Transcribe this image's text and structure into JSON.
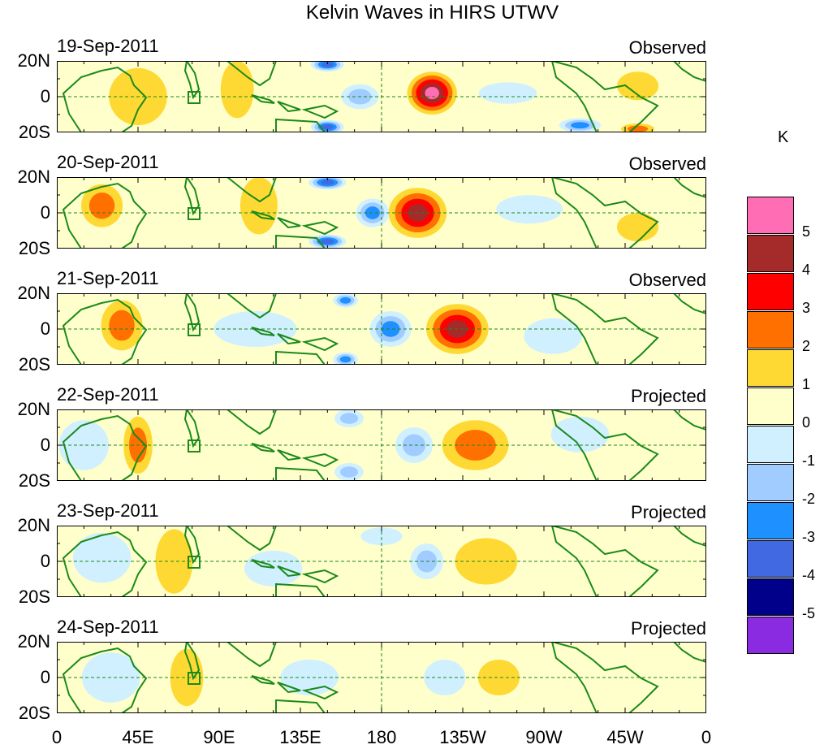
{
  "title": "Kelvin Waves in HIRS UTWV",
  "chart_data": {
    "type": "heatmap",
    "title": "Kelvin Waves in HIRS UTWV",
    "x_ticks": [
      "0",
      "45E",
      "90E",
      "135E",
      "180",
      "135W",
      "90W",
      "45W",
      "0"
    ],
    "y_ticks": [
      "20N",
      "0",
      "20S"
    ],
    "lon_range": [
      0,
      360
    ],
    "lat_range": [
      -20,
      20
    ],
    "colorbar": {
      "unit": "K",
      "labels": [
        "5",
        "4",
        "3",
        "2",
        "1",
        "0",
        "-1",
        "-2",
        "-3",
        "-4",
        "-5"
      ],
      "colors_top_to_bottom": [
        "#ff6eb4",
        "#a52a2a",
        "#ff0000",
        "#ff7000",
        "#ffd933",
        "#ffffcc",
        "#d0f0ff",
        "#a0ccff",
        "#1e90ff",
        "#4169e1",
        "#00008b",
        "#8a2be2"
      ]
    },
    "panels": [
      {
        "date": "19-Sep-2011",
        "status": "Observed",
        "features": [
          {
            "lon": 208,
            "lat": 2,
            "value": 5.2,
            "wlon": 12,
            "wlat": 12
          },
          {
            "lon": 150,
            "lat": 18,
            "value": -4.2,
            "wlon": 8,
            "wlat": 4
          },
          {
            "lon": 150,
            "lat": -17,
            "value": -4.2,
            "wlon": 8,
            "wlat": 4
          },
          {
            "lon": 168,
            "lat": 0,
            "value": -2.5,
            "wlon": 9,
            "wlat": 7
          },
          {
            "lon": 45,
            "lat": 0,
            "value": 1.6,
            "wlon": 14,
            "wlat": 16
          },
          {
            "lon": 100,
            "lat": 4,
            "value": 1.6,
            "wlon": 8,
            "wlat": 16
          },
          {
            "lon": 290,
            "lat": -16,
            "value": -3.2,
            "wlon": 10,
            "wlat": 4
          },
          {
            "lon": 322,
            "lat": -18,
            "value": 2.2,
            "wlon": 8,
            "wlat": 3
          },
          {
            "lon": 322,
            "lat": 6,
            "value": 1.2,
            "wlon": 10,
            "wlat": 8
          },
          {
            "lon": 250,
            "lat": 2,
            "value": -1.5,
            "wlon": 14,
            "wlat": 6
          }
        ]
      },
      {
        "date": "20-Sep-2011",
        "status": "Observed",
        "features": [
          {
            "lon": 200,
            "lat": 0,
            "value": 4.7,
            "wlon": 14,
            "wlat": 14
          },
          {
            "lon": 150,
            "lat": 17,
            "value": -4.2,
            "wlon": 9,
            "wlat": 4
          },
          {
            "lon": 150,
            "lat": -16,
            "value": -4.2,
            "wlon": 9,
            "wlat": 4
          },
          {
            "lon": 175,
            "lat": 0,
            "value": -3.2,
            "wlon": 8,
            "wlat": 8
          },
          {
            "lon": 25,
            "lat": 4,
            "value": 2.2,
            "wlon": 10,
            "wlat": 12
          },
          {
            "lon": 112,
            "lat": 4,
            "value": 1.8,
            "wlon": 9,
            "wlat": 16
          },
          {
            "lon": 262,
            "lat": 2,
            "value": -1.5,
            "wlon": 16,
            "wlat": 8
          },
          {
            "lon": 322,
            "lat": -8,
            "value": 1.6,
            "wlon": 10,
            "wlat": 8
          }
        ]
      },
      {
        "date": "21-Sep-2011",
        "status": "Observed",
        "features": [
          {
            "lon": 222,
            "lat": 0,
            "value": 4.6,
            "wlon": 15,
            "wlat": 14
          },
          {
            "lon": 185,
            "lat": 0,
            "value": -3.2,
            "wlon": 10,
            "wlat": 10
          },
          {
            "lon": 160,
            "lat": 16,
            "value": -3.5,
            "wlon": 6,
            "wlat": 4
          },
          {
            "lon": 160,
            "lat": -17,
            "value": -3.5,
            "wlon": 6,
            "wlat": 4
          },
          {
            "lon": 36,
            "lat": 2,
            "value": 2.2,
            "wlon": 10,
            "wlat": 14
          },
          {
            "lon": 275,
            "lat": -4,
            "value": -1.5,
            "wlon": 14,
            "wlat": 10
          },
          {
            "lon": 110,
            "lat": 0,
            "value": -1.3,
            "wlon": 20,
            "wlat": 10
          }
        ]
      },
      {
        "date": "22-Sep-2011",
        "status": "Projected",
        "features": [
          {
            "lon": 232,
            "lat": 0,
            "value": 2.5,
            "wlon": 16,
            "wlat": 14
          },
          {
            "lon": 198,
            "lat": 0,
            "value": -2.5,
            "wlon": 9,
            "wlat": 10
          },
          {
            "lon": 45,
            "lat": 0,
            "value": 2.2,
            "wlon": 7,
            "wlat": 16
          },
          {
            "lon": 162,
            "lat": 15,
            "value": -2.4,
            "wlon": 7,
            "wlat": 5
          },
          {
            "lon": 162,
            "lat": -15,
            "value": -2.4,
            "wlon": 7,
            "wlat": 5
          },
          {
            "lon": 15,
            "lat": 0,
            "value": -1.8,
            "wlon": 12,
            "wlat": 14
          },
          {
            "lon": 290,
            "lat": 6,
            "value": -1.4,
            "wlon": 14,
            "wlat": 10
          }
        ]
      },
      {
        "date": "23-Sep-2011",
        "status": "Projected",
        "features": [
          {
            "lon": 238,
            "lat": 0,
            "value": 1.8,
            "wlon": 15,
            "wlat": 13
          },
          {
            "lon": 205,
            "lat": 0,
            "value": -2.2,
            "wlon": 8,
            "wlat": 10
          },
          {
            "lon": 65,
            "lat": 0,
            "value": 1.5,
            "wlon": 9,
            "wlat": 18
          },
          {
            "lon": 25,
            "lat": 2,
            "value": -1.5,
            "wlon": 14,
            "wlat": 14
          },
          {
            "lon": 120,
            "lat": -4,
            "value": -1.3,
            "wlon": 14,
            "wlat": 10
          },
          {
            "lon": 180,
            "lat": 14,
            "value": -1.3,
            "wlon": 10,
            "wlat": 5
          }
        ]
      },
      {
        "date": "24-Sep-2011",
        "status": "Projected",
        "features": [
          {
            "lon": 245,
            "lat": 0,
            "value": 1.4,
            "wlon": 10,
            "wlat": 10
          },
          {
            "lon": 215,
            "lat": 0,
            "value": -1.6,
            "wlon": 10,
            "wlat": 10
          },
          {
            "lon": 72,
            "lat": 0,
            "value": 1.5,
            "wlon": 8,
            "wlat": 16
          },
          {
            "lon": 30,
            "lat": 0,
            "value": -1.4,
            "wlon": 14,
            "wlat": 14
          },
          {
            "lon": 140,
            "lat": 0,
            "value": -1.2,
            "wlon": 14,
            "wlat": 10
          }
        ]
      }
    ]
  }
}
